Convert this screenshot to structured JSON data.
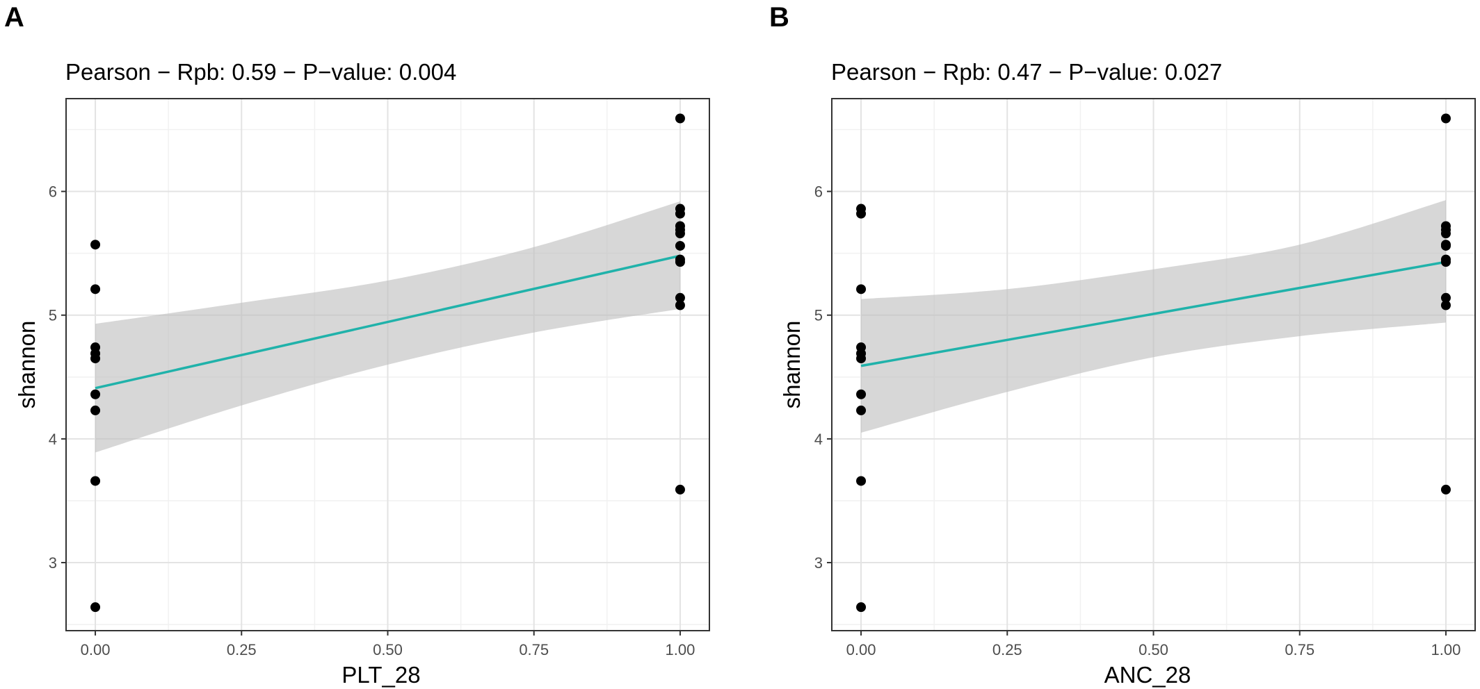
{
  "chart_data": [
    {
      "panel_label": "A",
      "type": "scatter",
      "title": "Pearson − Rpb: 0.59 − P−value: 0.004",
      "xlabel": "PLT_28",
      "ylabel": "shannon",
      "xlim": [
        -0.05,
        1.05
      ],
      "ylim": [
        2.45,
        6.75
      ],
      "x_ticks": [
        0,
        0.25,
        0.5,
        0.75,
        1
      ],
      "x_tick_labels": [
        "0.00",
        "0.25",
        "0.50",
        "0.75",
        "1.00"
      ],
      "y_ticks": [
        3,
        4,
        5,
        6
      ],
      "y_tick_labels": [
        "3",
        "4",
        "5",
        "6"
      ],
      "grid": true,
      "points": [
        {
          "x": 0,
          "y": 5.57
        },
        {
          "x": 0,
          "y": 5.21
        },
        {
          "x": 0,
          "y": 4.74
        },
        {
          "x": 0,
          "y": 4.69
        },
        {
          "x": 0,
          "y": 4.65
        },
        {
          "x": 0,
          "y": 4.36
        },
        {
          "x": 0,
          "y": 4.23
        },
        {
          "x": 0,
          "y": 3.66
        },
        {
          "x": 0,
          "y": 2.64
        },
        {
          "x": 1,
          "y": 6.59
        },
        {
          "x": 1,
          "y": 5.86
        },
        {
          "x": 1,
          "y": 5.82
        },
        {
          "x": 1,
          "y": 5.72
        },
        {
          "x": 1,
          "y": 5.69
        },
        {
          "x": 1,
          "y": 5.66
        },
        {
          "x": 1,
          "y": 5.56
        },
        {
          "x": 1,
          "y": 5.45
        },
        {
          "x": 1,
          "y": 5.43
        },
        {
          "x": 1,
          "y": 5.14
        },
        {
          "x": 1,
          "y": 5.08
        },
        {
          "x": 1,
          "y": 3.59
        }
      ],
      "fit": {
        "x": [
          0,
          1
        ],
        "y": [
          4.41,
          5.48
        ]
      },
      "ci_band": {
        "x": [
          0,
          0.25,
          0.5,
          0.75,
          1
        ],
        "lower": [
          3.89,
          4.27,
          4.6,
          4.86,
          5.05
        ],
        "upper": [
          4.93,
          5.1,
          5.28,
          5.55,
          5.92
        ]
      },
      "colors": {
        "fit_line": "#20b2aa",
        "band": "#bebebe",
        "points": "#000000"
      }
    },
    {
      "panel_label": "B",
      "type": "scatter",
      "title": "Pearson − Rpb: 0.47 − P−value: 0.027",
      "xlabel": "ANC_28",
      "ylabel": "shannon",
      "xlim": [
        -0.05,
        1.05
      ],
      "ylim": [
        2.45,
        6.75
      ],
      "x_ticks": [
        0,
        0.25,
        0.5,
        0.75,
        1
      ],
      "x_tick_labels": [
        "0.00",
        "0.25",
        "0.50",
        "0.75",
        "1.00"
      ],
      "y_ticks": [
        3,
        4,
        5,
        6
      ],
      "y_tick_labels": [
        "3",
        "4",
        "5",
        "6"
      ],
      "grid": true,
      "points": [
        {
          "x": 0,
          "y": 5.86
        },
        {
          "x": 0,
          "y": 5.82
        },
        {
          "x": 0,
          "y": 5.21
        },
        {
          "x": 0,
          "y": 4.74
        },
        {
          "x": 0,
          "y": 4.69
        },
        {
          "x": 0,
          "y": 4.65
        },
        {
          "x": 0,
          "y": 4.36
        },
        {
          "x": 0,
          "y": 4.23
        },
        {
          "x": 0,
          "y": 3.66
        },
        {
          "x": 0,
          "y": 2.64
        },
        {
          "x": 1,
          "y": 6.59
        },
        {
          "x": 1,
          "y": 5.72
        },
        {
          "x": 1,
          "y": 5.69
        },
        {
          "x": 1,
          "y": 5.66
        },
        {
          "x": 1,
          "y": 5.57
        },
        {
          "x": 1,
          "y": 5.56
        },
        {
          "x": 1,
          "y": 5.45
        },
        {
          "x": 1,
          "y": 5.43
        },
        {
          "x": 1,
          "y": 5.14
        },
        {
          "x": 1,
          "y": 5.08
        },
        {
          "x": 1,
          "y": 3.59
        }
      ],
      "fit": {
        "x": [
          0,
          1
        ],
        "y": [
          4.59,
          5.43
        ]
      },
      "ci_band": {
        "x": [
          0,
          0.25,
          0.5,
          0.75,
          1
        ],
        "lower": [
          4.05,
          4.38,
          4.66,
          4.83,
          4.94
        ],
        "upper": [
          5.13,
          5.21,
          5.37,
          5.57,
          5.93
        ]
      },
      "colors": {
        "fit_line": "#20b2aa",
        "band": "#bebebe",
        "points": "#000000"
      }
    }
  ]
}
